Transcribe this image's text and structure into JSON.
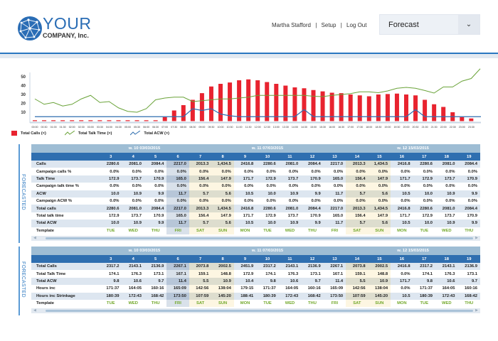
{
  "header": {
    "logo_line1": "YOUR",
    "logo_line2": "COMPANY, Inc.",
    "user_name": "Martha Stafford",
    "separator": "|",
    "setup_link": "Setup",
    "logout_link": "Log Out",
    "view_select": {
      "selected": "Forecast"
    }
  },
  "colors": {
    "accent": "#2a77c0",
    "calls": "#e8232f",
    "talk_time": "#6aa339",
    "acw": "#2f6fb0",
    "template": "#72a82a"
  },
  "chart_data": {
    "type": "bar+line",
    "ylim": [
      0,
      55
    ],
    "yticks": [
      10,
      20,
      30,
      40,
      50
    ],
    "categories": [
      "00:00",
      "00:30",
      "01:00",
      "01:30",
      "02:00",
      "02:30",
      "03:00",
      "03:30",
      "04:00",
      "04:30",
      "05:00",
      "05:30",
      "06:00",
      "06:30",
      "07:00",
      "07:30",
      "08:00",
      "08:30",
      "09:00",
      "09:30",
      "10:00",
      "10:30",
      "11:00",
      "11:30",
      "12:00",
      "12:30",
      "13:00",
      "13:30",
      "14:00",
      "14:30",
      "15:00",
      "15:30",
      "16:00",
      "16:30",
      "17:00",
      "17:30",
      "18:00",
      "18:30",
      "19:00",
      "19:30",
      "20:00",
      "20:30",
      "21:00",
      "21:30",
      "22:00",
      "22:30",
      "23:00",
      "23:30"
    ],
    "series": [
      {
        "name": "Total Calls (<)",
        "kind": "bar",
        "values": [
          1,
          1,
          1,
          1,
          1,
          1,
          1,
          1,
          1,
          1,
          1,
          1,
          1,
          1,
          4.5,
          12,
          18,
          24,
          31.5,
          39,
          42,
          43.5,
          46,
          47,
          46,
          44,
          42,
          40,
          38,
          37,
          35,
          33.5,
          32,
          31.5,
          30,
          29,
          28,
          30,
          30.5,
          31,
          30,
          29,
          24,
          19,
          16,
          10,
          4.5,
          3
        ]
      },
      {
        "name": "Total Talk Time (>)",
        "kind": "line",
        "values": [
          25,
          19,
          21,
          17,
          19,
          25,
          29,
          21,
          22,
          15,
          11,
          10,
          14,
          24,
          26,
          27,
          27,
          22,
          23,
          24,
          25,
          25,
          26,
          27,
          29,
          29,
          29,
          29,
          29,
          29,
          28,
          27.6,
          29,
          30,
          31,
          33,
          33,
          32,
          34,
          37,
          38,
          37,
          34.5,
          31.6,
          38.5,
          38.5,
          45,
          48
        ]
      },
      {
        "name": "Total ACW (>)",
        "kind": "line",
        "values": [
          5,
          5,
          5,
          5,
          5,
          5,
          5,
          5,
          5,
          5,
          5,
          5,
          5,
          5,
          5,
          5,
          5,
          14,
          12,
          14,
          8,
          6,
          5,
          5,
          5,
          5,
          5,
          5,
          5,
          13,
          5,
          5,
          5,
          5,
          5,
          5,
          5,
          5,
          5,
          5,
          5,
          13,
          5,
          5,
          5,
          5,
          5,
          5
        ]
      }
    ]
  },
  "tables": [
    {
      "side_label": "FORECASTED",
      "weeks": [
        {
          "label": "w. 10  03/03/2015",
          "days": 4
        },
        {
          "label": "w. 11  07/03/2015",
          "days": 7
        },
        {
          "label": "w. 12  15/03/2015",
          "days": 6
        }
      ],
      "days": [
        "3",
        "4",
        "5",
        "6",
        "7",
        "8",
        "9",
        "10",
        "11",
        "12",
        "13",
        "14",
        "15",
        "16",
        "17",
        "18",
        "19"
      ],
      "day_types": [
        "",
        "",
        "",
        "selected",
        "weekend",
        "weekend",
        "",
        "",
        "",
        "",
        "",
        "weekend",
        "weekend",
        "",
        "",
        "",
        ""
      ],
      "rows": [
        {
          "label": "Calls",
          "values": [
            "2280.6",
            "2081.0",
            "2084.4",
            "2217.0",
            "2013.3",
            "1,434.5",
            "2416.8",
            "2280.6",
            "2081.0",
            "2084.4",
            "2217.0",
            "2013.3",
            "1,434.5",
            "2416.8",
            "2280.6",
            "2081.0",
            "2084.4"
          ]
        },
        {
          "label": "Campaign calls %",
          "values": [
            "0.0%",
            "0.0%",
            "0.0%",
            "0.0%",
            "0.0%",
            "0.0%",
            "0.0%",
            "0.0%",
            "0.0%",
            "0.0%",
            "0.0%",
            "0.0%",
            "0.0%",
            "0.0%",
            "0.0%",
            "0.0%",
            "0.0%"
          ]
        },
        {
          "label": "Talk Time",
          "values": [
            "172.9",
            "173.7",
            "170.9",
            "165.0",
            "156.4",
            "147.9",
            "171.7",
            "172.9",
            "173.7",
            "170.9",
            "165.0",
            "156.4",
            "147.9",
            "171.7",
            "172.9",
            "173.7",
            "170.9"
          ]
        },
        {
          "label": "Campaign talk time %",
          "values": [
            "0.0%",
            "0.0%",
            "0.0%",
            "0.0%",
            "0.0%",
            "0.0%",
            "0.0%",
            "0.0%",
            "0.0%",
            "0.0%",
            "0.0%",
            "0.0%",
            "0.0%",
            "0.0%",
            "0.0%",
            "0.0%",
            "0.0%"
          ]
        },
        {
          "label": "ACW",
          "values": [
            "10.0",
            "10.9",
            "9.9",
            "11.7",
            "5.7",
            "5.6",
            "10.5",
            "10.0",
            "10.9",
            "9.9",
            "11.7",
            "5.7",
            "5.6",
            "10.5",
            "10.0",
            "10.9",
            "9.9"
          ]
        },
        {
          "label": "Campaign ACW %",
          "values": [
            "0.0%",
            "0.0%",
            "0.0%",
            "0.0%",
            "0.0%",
            "0.0%",
            "0.0%",
            "0.0%",
            "0.0%",
            "0.0%",
            "0.0%",
            "0.0%",
            "0.0%",
            "0.0%",
            "0.0%",
            "0.0%",
            "0.0%"
          ]
        },
        {
          "label": "Total calls",
          "values": [
            "2280.6",
            "2081.0",
            "2084.4",
            "2217.0",
            "2013.3",
            "1,434.5",
            "2416.8",
            "2280.6",
            "2081.0",
            "2084.4",
            "2217.0",
            "2013.3",
            "1,434.5",
            "2416.8",
            "2280.6",
            "2081.0",
            "2084.4"
          ]
        },
        {
          "label": "Total talk time",
          "values": [
            "172.9",
            "173.7",
            "170.9",
            "165.0",
            "156.4",
            "147.9",
            "171.7",
            "172.9",
            "173.7",
            "170.9",
            "165.0",
            "156.4",
            "147.9",
            "171.7",
            "172.9",
            "173.7",
            "170.9"
          ]
        },
        {
          "label": "Total ACW",
          "values": [
            "10.0",
            "10.9",
            "9.9",
            "11.7",
            "5.7",
            "5.6",
            "10.5",
            "10.0",
            "10.9",
            "9.9",
            "11.7",
            "5.7",
            "5.6",
            "10.5",
            "10.0",
            "10.9",
            "9.9"
          ]
        },
        {
          "label": "Template",
          "template": true,
          "values": [
            "TUE",
            "WED",
            "THU",
            "FRI",
            "SAT",
            "SUN",
            "MON",
            "TUE",
            "WED",
            "THU",
            "FRI",
            "SAT",
            "SUN",
            "MON",
            "TUE",
            "WED",
            "THU"
          ]
        }
      ]
    },
    {
      "side_label": "FORECASTED",
      "weeks": [
        {
          "label": "w. 10  03/03/2015",
          "days": 4
        },
        {
          "label": "w. 11  07/03/2015",
          "days": 7
        },
        {
          "label": "w. 12  15/03/2015",
          "days": 6
        }
      ],
      "days": [
        "3",
        "4",
        "5",
        "6",
        "7",
        "8",
        "9",
        "10",
        "11",
        "12",
        "13",
        "14",
        "15",
        "16",
        "17",
        "18",
        "19"
      ],
      "day_types": [
        "",
        "",
        "",
        "selected",
        "weekend",
        "weekend",
        "",
        "",
        "",
        "",
        "",
        "weekend",
        "weekend",
        "",
        "",
        "",
        ""
      ],
      "rows": [
        {
          "label": "Total Calls",
          "values": [
            "2317.2",
            "2143.1",
            "2136.9",
            "2267.1",
            "2073.8",
            "2002.5",
            "2451.9",
            "2317.2",
            "2143.1",
            "2136.9",
            "2267.1",
            "2073.8",
            "2002.5",
            "2416.8",
            "2317.2",
            "2143.1",
            "2136.9"
          ]
        },
        {
          "label": "Total Talk Time",
          "values": [
            "174.1",
            "176.3",
            "173.1",
            "167.1",
            "159.1",
            "148.8",
            "172.9",
            "174.1",
            "176.3",
            "173.1",
            "167.1",
            "159.1",
            "148.8",
            "0.0%",
            "174.1",
            "176.3",
            "173.1"
          ]
        },
        {
          "label": "Total ACW",
          "values": [
            "9.8",
            "10.6",
            "9.7",
            "11.4",
            "5.5",
            "10.9",
            "10.4",
            "9.8",
            "10.6",
            "9.7",
            "11.4",
            "5.5",
            "10.9",
            "171.7",
            "9.8",
            "10.6",
            "9.7"
          ]
        },
        {
          "label": "Hours inc",
          "values": [
            "171:37",
            "164:05",
            "160:16",
            "165:09",
            "142:56",
            "138:04",
            "179:15",
            "171:37",
            "164:05",
            "160:16",
            "165:09",
            "142:56",
            "138:04",
            "0.0%",
            "171:37",
            "164:05",
            "160:16"
          ]
        },
        {
          "label": "Hours inc Strinkage",
          "values": [
            "180:39",
            "172:43",
            "168:42",
            "173:50",
            "107:59",
            "145:20",
            "188:41",
            "180:39",
            "172:43",
            "168:42",
            "173:50",
            "107:59",
            "145:20",
            "10.5",
            "180:39",
            "172:43",
            "168:42"
          ]
        },
        {
          "label": "Template",
          "template": true,
          "values": [
            "TUE",
            "WED",
            "THU",
            "FRI",
            "SAT",
            "SUN",
            "MON",
            "TUE",
            "WED",
            "THU",
            "FRI",
            "SAT",
            "SUN",
            "MON",
            "TUE",
            "WED",
            "THU"
          ]
        }
      ]
    }
  ]
}
